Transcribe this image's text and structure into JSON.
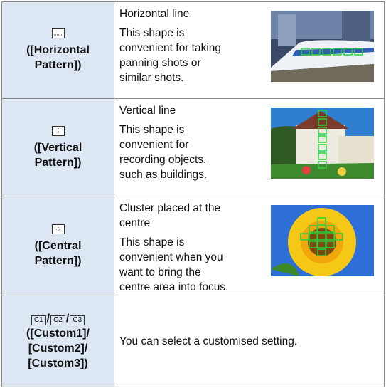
{
  "table": {
    "rows": [
      {
        "label": [
          "([Horizontal",
          "Pattern])"
        ],
        "heading": [
          "Horizontal line"
        ],
        "description": [
          "This shape is",
          "convenient for taking",
          "panning shots or",
          "similar shots."
        ]
      },
      {
        "label": [
          "([Vertical",
          "Pattern])"
        ],
        "heading": [
          "Vertical line"
        ],
        "description": [
          "This shape is",
          "convenient for",
          "recording objects,",
          "such as buildings."
        ]
      },
      {
        "label": [
          "([Central",
          "Pattern])"
        ],
        "heading": [
          "Cluster placed at the",
          "centre"
        ],
        "description": [
          "This shape is",
          "convenient when you",
          "want to bring the",
          "centre area into focus."
        ]
      },
      {
        "icons": [
          "C1",
          "C2",
          "C3"
        ],
        "separator": "/",
        "label": [
          "([Custom1]/",
          "[Custom2]/",
          "[Custom3])"
        ],
        "description": [
          "You can select a customised setting."
        ]
      }
    ]
  }
}
